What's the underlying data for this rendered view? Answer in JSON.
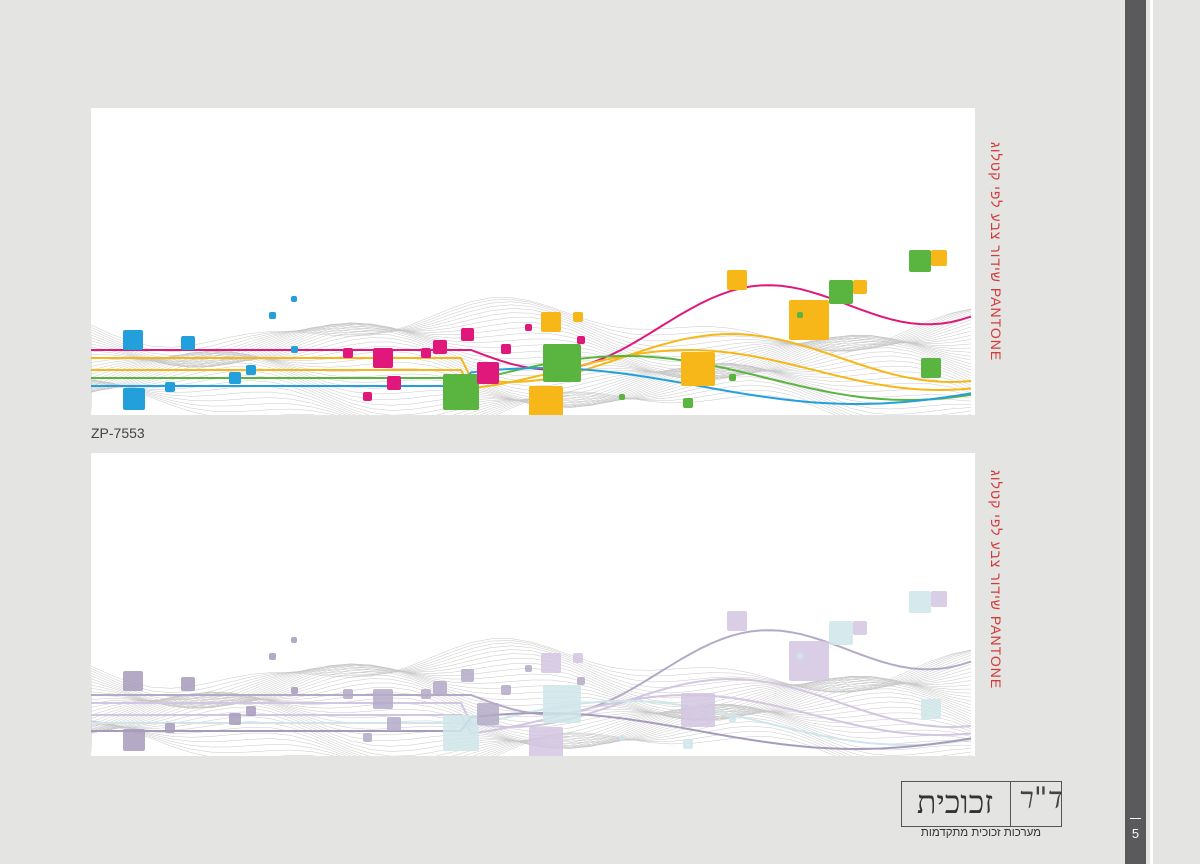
{
  "panels": [
    {
      "code": "ZP-7553",
      "side_text": "שידור צבע לפי קטלוג PANTONE",
      "palette": [
        "#e0187c",
        "#f7b718",
        "#5ab440",
        "#23a0dc"
      ],
      "variant": "color"
    },
    {
      "side_text": "שידור צבע לפי קטלוג PANTONE",
      "palette": [
        "#b4aac8",
        "#d2c6e0",
        "#cfe6ea",
        "#a79bbc"
      ],
      "variant": "muted"
    }
  ],
  "logo": {
    "word": "זכוכית",
    "mark": "ד\"ר",
    "tagline": "מערכות זכוכית מתקדמות"
  },
  "page": {
    "number": "5"
  },
  "colors": {
    "background": "#e4e4e2",
    "side_text": "#d23a3a",
    "sidebar": "#5a5a5c"
  }
}
